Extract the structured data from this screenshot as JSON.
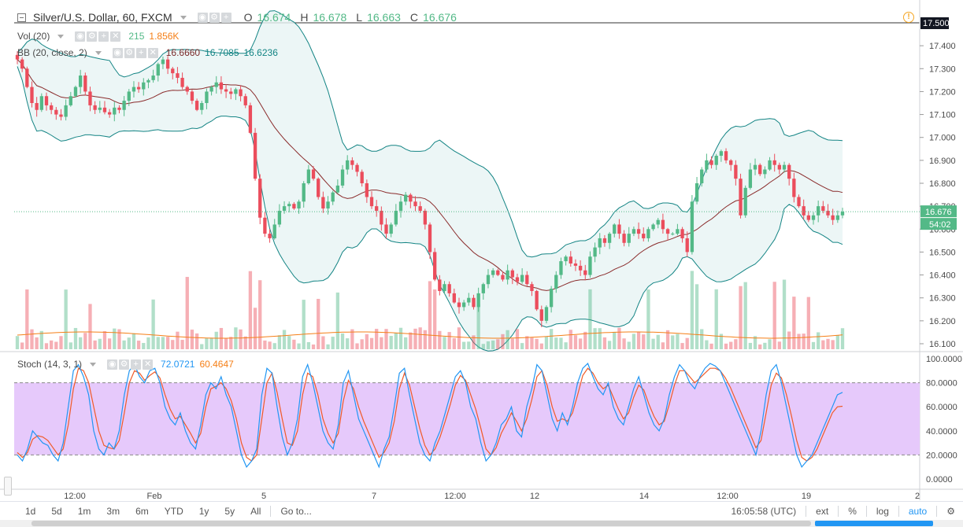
{
  "header": {
    "symbol": "Silver/U.S. Dollar, 60, FXCM",
    "o_label": "O",
    "o_value": "16.674",
    "h_label": "H",
    "h_value": "16.678",
    "l_label": "L",
    "l_value": "16.663",
    "c_label": "C",
    "c_value": "16.676",
    "alert_glyph": "!"
  },
  "volume": {
    "label": "Vol (20)",
    "value1": "215",
    "value2": "1.856K"
  },
  "bollinger": {
    "label": "BB (20, close, 2)",
    "basis": "16.6660",
    "upper": "16.7085",
    "lower": "16.6236"
  },
  "stoch": {
    "label": "Stoch (14, 3, 1)",
    "k": "72.0721",
    "d": "60.4647"
  },
  "colors": {
    "up": "#53b987",
    "down": "#eb4d5c",
    "bb_band": "#138484",
    "bb_basis": "#8a2b2b",
    "bb_fill": "#e7f4f4",
    "vol_ma": "#f57f17",
    "stoch_k": "#2196f3",
    "stoch_d": "#f05a28",
    "stoch_band": "#e6c9fb",
    "last_price_bg": "#53b987"
  },
  "price_axis": {
    "labels": [
      "17.400",
      "17.300",
      "17.200",
      "17.100",
      "17.000",
      "16.900",
      "16.800",
      "16.700",
      "16.600",
      "16.500",
      "16.400",
      "16.300",
      "16.200",
      "16.100"
    ],
    "top_tag": "17.500",
    "last_price": "16.676",
    "countdown": "54:02"
  },
  "stoch_axis": {
    "labels": [
      "100.0000",
      "80.0000",
      "60.0000",
      "40.0000",
      "20.0000",
      "0.0000"
    ]
  },
  "time_axis": {
    "labels": [
      "12:00",
      "Feb",
      "5",
      "7",
      "12:00",
      "12",
      "14",
      "12:00",
      "19",
      "2"
    ]
  },
  "timeframes": [
    "1d",
    "5d",
    "1m",
    "3m",
    "6m",
    "YTD",
    "1y",
    "5y",
    "All"
  ],
  "goto": "Go to...",
  "clock": "16:05:58 (UTC)",
  "controls": {
    "ext": "ext",
    "pct": "%",
    "log": "log",
    "auto": "auto",
    "settings": "⚙"
  },
  "icons": [
    "collapse-icon",
    "eye-icon",
    "gear-icon",
    "plus-icon",
    "close-icon",
    "alert-icon",
    "settings-icon"
  ],
  "chart_data": {
    "type": "candlestick",
    "price_range": [
      16.07,
      17.52
    ],
    "closes": [
      17.34,
      17.3,
      17.22,
      17.15,
      17.12,
      17.18,
      17.14,
      17.12,
      17.1,
      17.09,
      17.14,
      17.18,
      17.22,
      17.27,
      17.2,
      17.14,
      17.12,
      17.13,
      17.11,
      17.1,
      17.13,
      17.12,
      17.16,
      17.2,
      17.22,
      17.21,
      17.24,
      17.25,
      17.27,
      17.32,
      17.34,
      17.3,
      17.28,
      17.26,
      17.22,
      17.2,
      17.16,
      17.12,
      17.15,
      17.2,
      17.22,
      17.24,
      17.21,
      17.2,
      17.19,
      17.21,
      17.18,
      17.14,
      17.02,
      16.82,
      16.65,
      16.58,
      16.56,
      16.62,
      16.68,
      16.7,
      16.71,
      16.69,
      16.72,
      16.8,
      16.86,
      16.82,
      16.74,
      16.69,
      16.72,
      16.76,
      16.79,
      16.86,
      16.9,
      16.88,
      16.85,
      16.8,
      16.74,
      16.7,
      16.68,
      16.62,
      16.58,
      16.62,
      16.68,
      16.72,
      16.75,
      16.72,
      16.7,
      16.68,
      16.62,
      16.5,
      16.38,
      16.33,
      16.36,
      16.32,
      16.28,
      16.26,
      16.28,
      16.3,
      16.26,
      16.32,
      16.36,
      16.4,
      16.42,
      16.4,
      16.38,
      16.42,
      16.39,
      16.37,
      16.4,
      16.36,
      16.33,
      16.25,
      16.2,
      16.26,
      16.34,
      16.4,
      16.46,
      16.48,
      16.45,
      16.44,
      16.42,
      16.4,
      16.48,
      16.52,
      16.56,
      16.54,
      16.58,
      16.62,
      16.58,
      16.54,
      16.58,
      16.6,
      16.58,
      16.56,
      16.6,
      16.62,
      16.64,
      16.6,
      16.58,
      16.58,
      16.6,
      16.56,
      16.5,
      16.72,
      16.8,
      16.86,
      16.9,
      16.88,
      16.92,
      16.94,
      16.9,
      16.88,
      16.82,
      16.66,
      16.78,
      16.86,
      16.88,
      16.84,
      16.86,
      16.9,
      16.88,
      16.86,
      16.88,
      16.82,
      16.74,
      16.7,
      16.66,
      16.64,
      16.66,
      16.7,
      16.68,
      16.66,
      16.64,
      16.66,
      16.676
    ],
    "stoch_k": [
      20,
      15,
      25,
      40,
      35,
      30,
      28,
      20,
      15,
      30,
      60,
      90,
      95,
      85,
      70,
      40,
      25,
      20,
      30,
      25,
      40,
      70,
      90,
      95,
      85,
      80,
      90,
      92,
      80,
      60,
      50,
      45,
      55,
      40,
      30,
      25,
      45,
      70,
      80,
      75,
      85,
      70,
      60,
      40,
      20,
      10,
      15,
      25,
      70,
      92,
      88,
      60,
      35,
      20,
      30,
      50,
      85,
      95,
      80,
      60,
      40,
      30,
      25,
      45,
      80,
      90,
      70,
      50,
      40,
      30,
      20,
      10,
      25,
      35,
      60,
      88,
      92,
      70,
      50,
      30,
      20,
      15,
      30,
      40,
      55,
      70,
      85,
      90,
      80,
      60,
      50,
      30,
      15,
      20,
      30,
      45,
      50,
      60,
      40,
      35,
      60,
      75,
      95,
      90,
      70,
      50,
      40,
      55,
      45,
      60,
      80,
      92,
      96,
      85,
      75,
      70,
      80,
      60,
      50,
      45,
      60,
      75,
      85,
      70,
      55,
      45,
      40,
      50,
      70,
      85,
      95,
      90,
      80,
      75,
      85,
      92,
      96,
      94,
      90,
      80,
      70,
      60,
      50,
      40,
      30,
      20,
      40,
      70,
      90,
      95,
      80,
      60,
      40,
      20,
      10,
      15,
      20,
      30,
      40,
      50,
      60,
      70,
      72
    ],
    "stoch_d": [
      22,
      18,
      22,
      33,
      36,
      35,
      32,
      26,
      20,
      25,
      45,
      75,
      92,
      90,
      80,
      60,
      40,
      28,
      26,
      25,
      32,
      55,
      80,
      90,
      88,
      82,
      86,
      89,
      84,
      70,
      58,
      50,
      52,
      45,
      38,
      30,
      38,
      60,
      75,
      77,
      80,
      75,
      65,
      50,
      30,
      18,
      15,
      20,
      50,
      80,
      88,
      72,
      50,
      30,
      28,
      40,
      70,
      88,
      85,
      70,
      50,
      38,
      30,
      38,
      65,
      82,
      75,
      60,
      48,
      38,
      28,
      18,
      22,
      30,
      48,
      75,
      88,
      78,
      60,
      42,
      28,
      20,
      25,
      35,
      48,
      62,
      78,
      86,
      82,
      70,
      58,
      42,
      25,
      20,
      26,
      38,
      46,
      55,
      48,
      40,
      50,
      66,
      85,
      90,
      78,
      60,
      48,
      50,
      48,
      55,
      70,
      86,
      92,
      88,
      80,
      75,
      78,
      68,
      58,
      50,
      55,
      68,
      78,
      74,
      62,
      52,
      45,
      48,
      62,
      78,
      90,
      90,
      85,
      80,
      84,
      88,
      92,
      92,
      90,
      84,
      76,
      66,
      56,
      46,
      36,
      26,
      32,
      55,
      78,
      88,
      84,
      70,
      52,
      32,
      18,
      15,
      18,
      25,
      35,
      45,
      55,
      60,
      60.46
    ]
  }
}
